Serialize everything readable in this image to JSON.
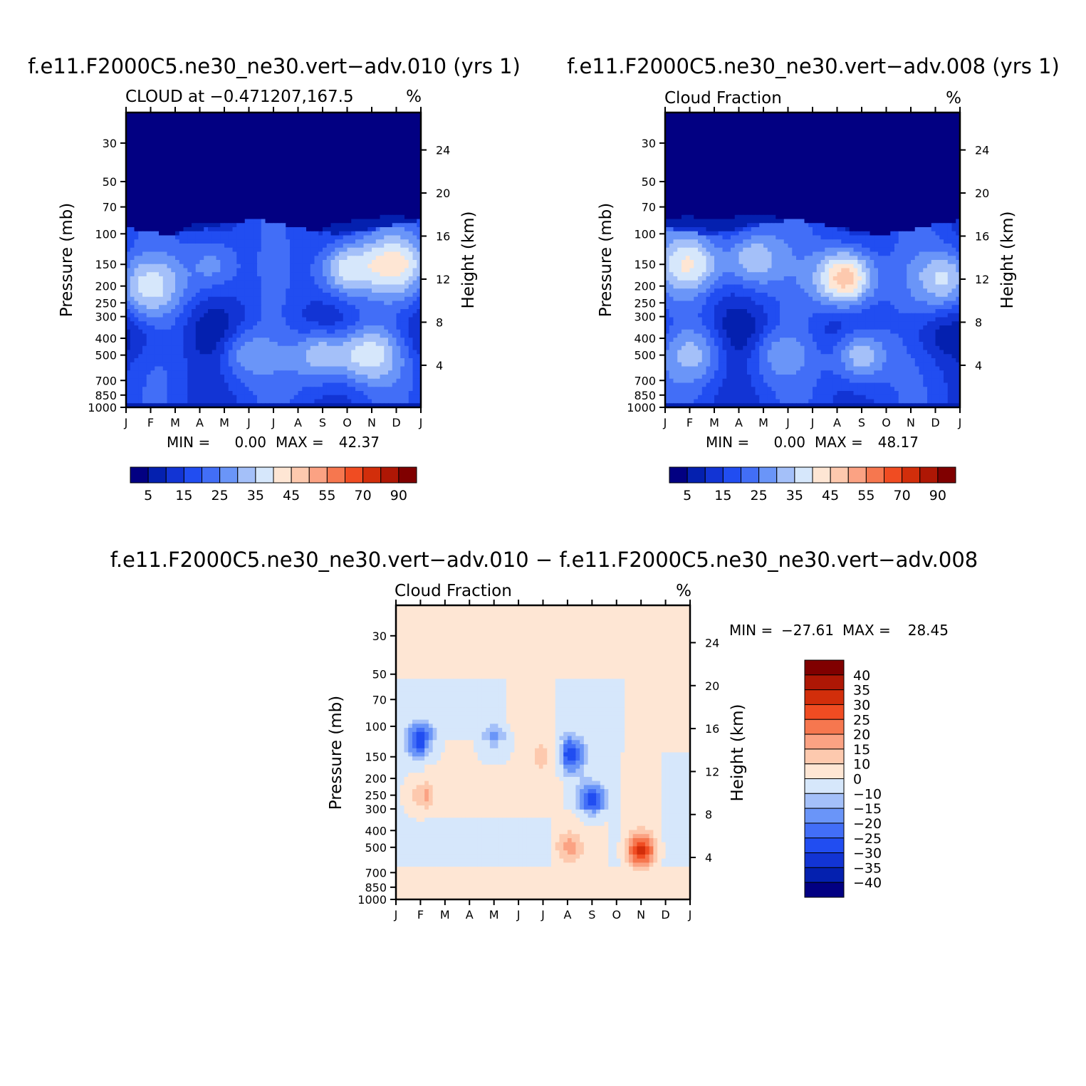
{
  "panels": [
    {
      "title": "f.e11.F2000C5.ne30_ne30.vert−adv.010 (yrs 1)",
      "subtitle_left": "CLOUD at −0.471207,167.5",
      "subtitle_right": "%",
      "min_label": "MIN =",
      "min_value": "0.00",
      "max_label": "MAX =",
      "max_value": "42.37",
      "ylabel_left": "Pressure (mb)",
      "ylabel_right": "Height (km)"
    },
    {
      "title": "f.e11.F2000C5.ne30_ne30.vert−adv.008 (yrs 1)",
      "subtitle_left": "Cloud Fraction",
      "subtitle_right": "%",
      "min_label": "MIN =",
      "min_value": "0.00",
      "max_label": "MAX =",
      "max_value": "48.17",
      "ylabel_left": "Pressure (mb)",
      "ylabel_right": "Height (km)"
    },
    {
      "title": "f.e11.F2000C5.ne30_ne30.vert−adv.010 − f.e11.F2000C5.ne30_ne30.vert−adv.008",
      "subtitle_left": "Cloud Fraction",
      "subtitle_right": "%",
      "min_label": "MIN =",
      "min_value": "−27.61",
      "max_label": "MAX =",
      "max_value": "28.45",
      "ylabel_left": "Pressure (mb)",
      "ylabel_right": "Height (km)"
    }
  ],
  "chart_data": [
    {
      "type": "heatmap",
      "title": "f.e11.F2000C5.ne30_ne30.vert−adv.010 (yrs 1)",
      "subtitle": "CLOUD at −0.471207,167.5",
      "units": "%",
      "x": [
        "J",
        "F",
        "M",
        "A",
        "M",
        "J",
        "J",
        "A",
        "S",
        "O",
        "N",
        "D",
        "J"
      ],
      "y_pressure_mb": [
        30,
        50,
        70,
        100,
        150,
        200,
        250,
        300,
        400,
        500,
        700,
        850,
        1000
      ],
      "y_height_km": [
        4,
        8,
        12,
        16,
        20,
        24
      ],
      "ylim_mb": [
        20,
        1000
      ],
      "xlabel": "",
      "ylabel": "Pressure (mb)",
      "ylabel_right": "Height (km)",
      "colorbar_labels": [
        "5",
        "15",
        "25",
        "35",
        "45",
        "55",
        "70",
        "90"
      ],
      "min": 0.0,
      "max": 42.37,
      "features": [
        {
          "month": 1,
          "mb": 200,
          "value": 38
        },
        {
          "month": 7.8,
          "mb": 500,
          "value": 32
        },
        {
          "month": 9,
          "mb": 160,
          "value": 36
        },
        {
          "month": 10,
          "mb": 500,
          "value": 38
        },
        {
          "month": 11,
          "mb": 150,
          "value": 42
        },
        {
          "month": 5.1,
          "mb": 500,
          "value": 28
        },
        {
          "month": 3.5,
          "mb": 150,
          "value": 26
        }
      ]
    },
    {
      "type": "heatmap",
      "title": "f.e11.F2000C5.ne30_ne30.vert−adv.008 (yrs 1)",
      "subtitle": "Cloud Fraction",
      "units": "%",
      "x": [
        "J",
        "F",
        "M",
        "A",
        "M",
        "J",
        "J",
        "A",
        "S",
        "O",
        "N",
        "D",
        "J"
      ],
      "y_pressure_mb": [
        30,
        50,
        70,
        100,
        150,
        200,
        250,
        300,
        400,
        500,
        700,
        850,
        1000
      ],
      "y_height_km": [
        4,
        8,
        12,
        16,
        20,
        24
      ],
      "ylim_mb": [
        20,
        1000
      ],
      "xlabel": "",
      "ylabel": "Pressure (mb)",
      "ylabel_right": "Height (km)",
      "colorbar_labels": [
        "5",
        "15",
        "25",
        "35",
        "45",
        "55",
        "70",
        "90"
      ],
      "min": 0.0,
      "max": 48.17,
      "features": [
        {
          "month": 0.9,
          "mb": 150,
          "value": 41
        },
        {
          "month": 7.3,
          "mb": 180,
          "value": 48
        },
        {
          "month": 3.7,
          "mb": 140,
          "value": 34
        },
        {
          "month": 11.3,
          "mb": 180,
          "value": 36
        },
        {
          "month": 8,
          "mb": 500,
          "value": 33
        },
        {
          "month": 1,
          "mb": 500,
          "value": 32
        },
        {
          "month": 4.8,
          "mb": 500,
          "value": 28
        }
      ]
    },
    {
      "type": "heatmap",
      "title": "f.e11.F2000C5.ne30_ne30.vert−adv.010 − f.e11.F2000C5.ne30_ne30.vert−adv.008",
      "subtitle": "Cloud Fraction",
      "units": "%",
      "x": [
        "J",
        "F",
        "M",
        "A",
        "M",
        "J",
        "J",
        "A",
        "S",
        "O",
        "N",
        "D",
        "J"
      ],
      "y_pressure_mb": [
        30,
        50,
        70,
        100,
        150,
        200,
        250,
        300,
        400,
        500,
        700,
        850,
        1000
      ],
      "y_height_km": [
        4,
        8,
        12,
        16,
        20,
        24
      ],
      "ylim_mb": [
        20,
        1000
      ],
      "xlabel": "",
      "ylabel": "Pressure (mb)",
      "ylabel_right": "Height (km)",
      "colorbar_labels": [
        "40",
        "35",
        "30",
        "25",
        "20",
        "15",
        "10",
        "0",
        "−10",
        "−15",
        "−20",
        "−25",
        "−30",
        "−35",
        "−40"
      ],
      "min": -27.61,
      "max": 28.45,
      "features": [
        {
          "month": 1,
          "mb": 120,
          "value": -25
        },
        {
          "month": 1,
          "mb": 250,
          "value": 18
        },
        {
          "month": 4,
          "mb": 120,
          "value": -14
        },
        {
          "month": 7.1,
          "mb": 145,
          "value": -26
        },
        {
          "month": 8,
          "mb": 270,
          "value": -25
        },
        {
          "month": 10,
          "mb": 520,
          "value": 28
        },
        {
          "month": 7.1,
          "mb": 500,
          "value": 14
        },
        {
          "month": 6,
          "mb": 150,
          "value": 12
        }
      ]
    }
  ],
  "colors": {
    "seq": [
      "#020082",
      "#0420AF",
      "#1234D4",
      "#214DF1",
      "#426EF7",
      "#6A95F8",
      "#A4C0F9",
      "#D6E7FB",
      "#FEE6D4",
      "#FDC9AE",
      "#FBA283",
      "#F6774F",
      "#F04C22",
      "#D22E0B",
      "#AE1705",
      "#800000"
    ],
    "div": [
      "#020082",
      "#0420AF",
      "#1234D4",
      "#214DF1",
      "#426EF7",
      "#6A95F8",
      "#A4C0F9",
      "#D6E7FB",
      "#FEE6D4",
      "#FDC9AE",
      "#FBA283",
      "#F6774F",
      "#F04C22",
      "#D22E0B",
      "#AE1705",
      "#800000"
    ]
  }
}
